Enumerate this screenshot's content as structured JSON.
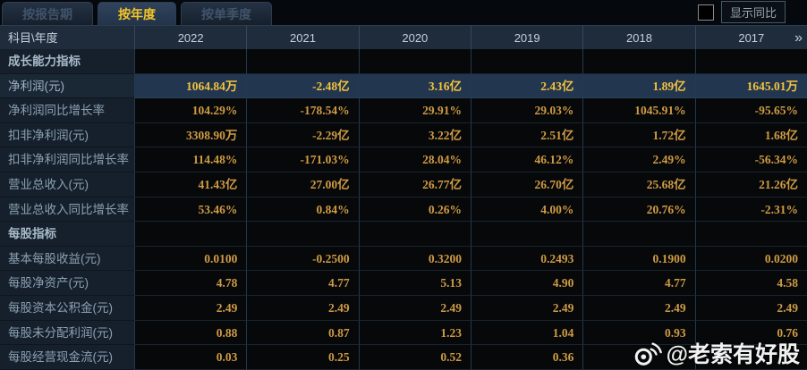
{
  "tabs": [
    {
      "label": "按报告期",
      "active": false
    },
    {
      "label": "按年度",
      "active": true
    },
    {
      "label": "按单季度",
      "active": false
    }
  ],
  "controls": {
    "show_yoy_label": "显示同比",
    "checkbox_checked": false
  },
  "table": {
    "corner_label": "科目\\年度",
    "years": [
      "2022",
      "2021",
      "2020",
      "2019",
      "2018",
      "2017"
    ],
    "more_icon": "»",
    "rows": [
      {
        "type": "section",
        "label": "成长能力指标",
        "values": [
          "",
          "",
          "",
          "",
          "",
          ""
        ]
      },
      {
        "type": "data",
        "highlight": true,
        "label": "净利润(元)",
        "values": [
          "1064.84万",
          "-2.48亿",
          "3.16亿",
          "2.43亿",
          "1.89亿",
          "1645.01万"
        ]
      },
      {
        "type": "data",
        "label": "净利润同比增长率",
        "values": [
          "104.29%",
          "-178.54%",
          "29.91%",
          "29.03%",
          "1045.91%",
          "-95.65%"
        ]
      },
      {
        "type": "data",
        "label": "扣非净利润(元)",
        "values": [
          "3308.90万",
          "-2.29亿",
          "3.22亿",
          "2.51亿",
          "1.72亿",
          "1.68亿"
        ]
      },
      {
        "type": "data",
        "label": "扣非净利润同比增长率",
        "values": [
          "114.48%",
          "-171.03%",
          "28.04%",
          "46.12%",
          "2.49%",
          "-56.34%"
        ]
      },
      {
        "type": "data",
        "label": "营业总收入(元)",
        "values": [
          "41.43亿",
          "27.00亿",
          "26.77亿",
          "26.70亿",
          "25.68亿",
          "21.26亿"
        ]
      },
      {
        "type": "data",
        "label": "营业总收入同比增长率",
        "values": [
          "53.46%",
          "0.84%",
          "0.26%",
          "4.00%",
          "20.76%",
          "-2.31%"
        ]
      },
      {
        "type": "section",
        "label": "每股指标",
        "values": [
          "",
          "",
          "",
          "",
          "",
          ""
        ]
      },
      {
        "type": "data",
        "label": "基本每股收益(元)",
        "values": [
          "0.0100",
          "-0.2500",
          "0.3200",
          "0.2493",
          "0.1900",
          "0.0200"
        ]
      },
      {
        "type": "data",
        "label": "每股净资产(元)",
        "values": [
          "4.78",
          "4.77",
          "5.13",
          "4.90",
          "4.77",
          "4.58"
        ]
      },
      {
        "type": "data",
        "label": "每股资本公积金(元)",
        "values": [
          "2.49",
          "2.49",
          "2.49",
          "2.49",
          "2.49",
          "2.49"
        ]
      },
      {
        "type": "data",
        "label": "每股未分配利润(元)",
        "values": [
          "0.88",
          "0.87",
          "1.23",
          "1.04",
          "0.93",
          "0.76"
        ]
      },
      {
        "type": "data",
        "label": "每股经营现金流(元)",
        "values": [
          "0.03",
          "0.25",
          "0.52",
          "0.36",
          "",
          ""
        ]
      }
    ]
  },
  "watermark": {
    "icon": "weibo-icon",
    "text": "@老索有好股"
  },
  "colors": {
    "background": "#05080c",
    "active_tab_text": "#f2c428",
    "value_gold": "#cf9b45",
    "highlight_row_bg": "#223650",
    "highlight_gold": "#f3c23c",
    "header_bg": "#1e2c3c",
    "label_cell_bg": "#15202c"
  }
}
